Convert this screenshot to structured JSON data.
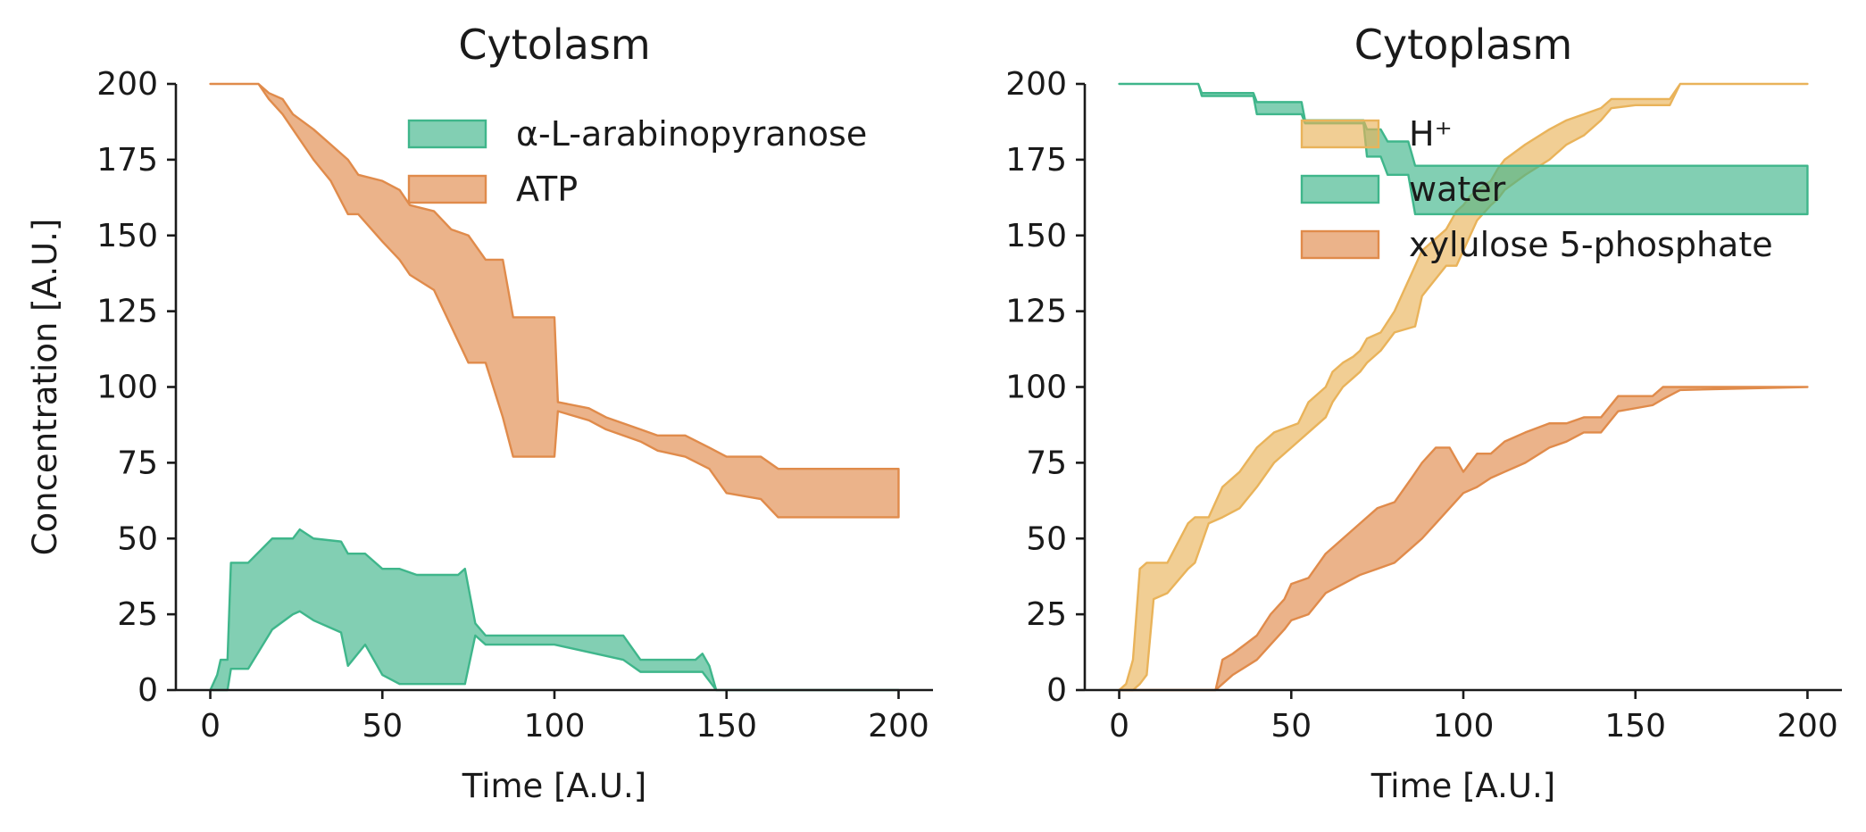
{
  "chart_data": [
    {
      "type": "area",
      "title": "Cytolasm",
      "xlabel": "Time [A.U.]",
      "ylabel": "Concentration [A.U.]",
      "xlim": [
        -10,
        210
      ],
      "ylim": [
        0,
        200
      ],
      "xticks": [
        "0",
        "50",
        "100",
        "150",
        "200"
      ],
      "yticks": [
        "0",
        "25",
        "50",
        "75",
        "100",
        "125",
        "150",
        "175",
        "200"
      ],
      "legend_position": "top-right",
      "series": [
        {
          "name": "α-L-arabinopyranose",
          "color": "#3fb68b",
          "x": [
            0,
            2,
            3,
            5,
            6,
            10,
            11,
            18,
            24,
            26,
            30,
            38,
            40,
            45,
            50,
            55,
            60,
            72,
            74,
            77,
            80,
            100,
            120,
            125,
            141,
            143,
            145,
            147,
            200
          ],
          "upper": [
            0,
            5,
            10,
            10,
            42,
            42,
            42,
            50,
            50,
            53,
            50,
            49,
            45,
            45,
            40,
            40,
            38,
            38,
            40,
            22,
            18,
            18,
            18,
            10,
            10,
            12,
            8,
            0,
            0
          ],
          "lower": [
            0,
            0,
            0,
            0,
            7,
            7,
            7,
            20,
            25,
            26,
            23,
            19,
            8,
            15,
            5,
            2,
            2,
            2,
            2,
            18,
            15,
            15,
            10,
            6,
            6,
            6,
            3,
            0,
            0
          ]
        },
        {
          "name": "ATP",
          "color": "#e08b4b",
          "x": [
            0,
            14,
            17,
            21,
            24,
            30,
            35,
            40,
            43,
            50,
            55,
            58,
            65,
            70,
            75,
            80,
            85,
            88,
            100,
            101,
            110,
            115,
            125,
            130,
            138,
            145,
            150,
            160,
            165,
            200
          ],
          "upper": [
            200,
            200,
            197,
            195,
            190,
            185,
            180,
            175,
            170,
            168,
            165,
            160,
            158,
            152,
            150,
            142,
            142,
            123,
            123,
            95,
            93,
            90,
            86,
            84,
            84,
            80,
            77,
            77,
            73,
            73
          ],
          "lower": [
            200,
            200,
            195,
            190,
            185,
            175,
            168,
            157,
            157,
            148,
            142,
            137,
            132,
            120,
            108,
            108,
            90,
            77,
            77,
            92,
            89,
            86,
            82,
            79,
            77,
            73,
            65,
            63,
            57,
            57
          ]
        }
      ]
    },
    {
      "type": "area",
      "title": "Cytoplasm",
      "xlabel": "Time [A.U.]",
      "ylabel": "",
      "xlim": [
        -10,
        210
      ],
      "ylim": [
        0,
        200
      ],
      "xticks": [
        "0",
        "50",
        "100",
        "150",
        "200"
      ],
      "yticks": [
        "0",
        "25",
        "50",
        "75",
        "100",
        "125",
        "150",
        "175",
        "200"
      ],
      "legend_position": "top-right",
      "series": [
        {
          "name": "H$^+$",
          "color": "#e9b35a",
          "x": [
            0,
            2,
            4,
            6,
            8,
            10,
            14,
            20,
            22,
            26,
            30,
            35,
            40,
            45,
            52,
            55,
            60,
            62,
            65,
            68,
            70,
            72,
            76,
            80,
            86,
            88,
            95,
            98,
            100,
            102,
            104,
            108,
            110,
            112,
            118,
            125,
            130,
            135,
            140,
            143,
            150,
            156,
            160,
            163,
            200
          ],
          "upper": [
            0,
            2,
            10,
            40,
            42,
            42,
            42,
            55,
            57,
            57,
            67,
            72,
            80,
            85,
            88,
            95,
            100,
            105,
            108,
            110,
            112,
            116,
            118,
            125,
            140,
            145,
            152,
            158,
            160,
            163,
            165,
            168,
            172,
            175,
            180,
            185,
            188,
            190,
            192,
            195,
            195,
            195,
            195,
            200,
            200
          ],
          "lower": [
            0,
            0,
            0,
            2,
            5,
            30,
            32,
            40,
            42,
            55,
            57,
            60,
            67,
            75,
            82,
            85,
            90,
            95,
            100,
            103,
            105,
            108,
            112,
            118,
            120,
            130,
            140,
            140,
            145,
            150,
            155,
            160,
            162,
            165,
            170,
            175,
            180,
            183,
            188,
            192,
            193,
            193,
            193,
            200,
            200
          ]
        },
        {
          "name": "water",
          "color": "#3fb68b",
          "x": [
            0,
            23,
            24,
            39,
            40,
            53,
            54,
            71,
            72,
            76,
            78,
            84,
            86,
            200
          ],
          "upper": [
            200,
            200,
            197,
            197,
            194,
            194,
            188,
            188,
            185,
            185,
            181,
            181,
            173,
            173
          ],
          "lower": [
            200,
            200,
            196,
            196,
            190,
            190,
            187,
            187,
            176,
            176,
            170,
            170,
            157,
            157
          ],
          "fill_only_at_end": true
        },
        {
          "name": "xylulose 5-phosphate",
          "color": "#e08b4b",
          "x": [
            0,
            24,
            28,
            30,
            33,
            40,
            44,
            48,
            50,
            55,
            60,
            65,
            70,
            75,
            80,
            85,
            88,
            92,
            96,
            100,
            104,
            108,
            112,
            118,
            125,
            130,
            135,
            140,
            145,
            155,
            158,
            163,
            200
          ],
          "upper": [
            0,
            0,
            0,
            10,
            12,
            18,
            25,
            30,
            35,
            37,
            45,
            50,
            55,
            60,
            62,
            70,
            75,
            80,
            80,
            72,
            78,
            78,
            82,
            85,
            88,
            88,
            90,
            90,
            97,
            97,
            100,
            100,
            100
          ],
          "lower": [
            0,
            0,
            0,
            2,
            5,
            10,
            15,
            20,
            23,
            25,
            32,
            35,
            38,
            40,
            42,
            47,
            50,
            55,
            60,
            65,
            67,
            70,
            72,
            75,
            80,
            82,
            85,
            85,
            92,
            94,
            96,
            99,
            100
          ]
        }
      ]
    }
  ],
  "legend_labels": [
    [
      "α-L-arabinopyranose",
      "ATP"
    ],
    [
      "H⁺",
      "water",
      "xylulose 5-phosphate"
    ]
  ]
}
